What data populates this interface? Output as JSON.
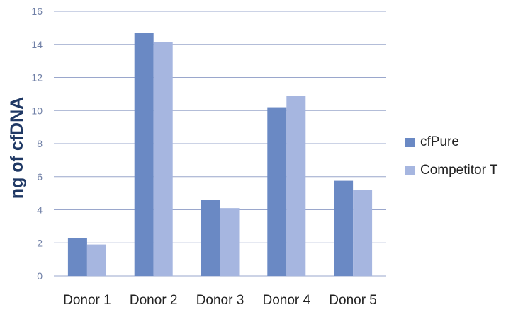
{
  "chart_data": {
    "type": "bar",
    "title": "",
    "xlabel": "",
    "ylabel": "ng of cfDNA",
    "categories": [
      "Donor 1",
      "Donor 2",
      "Donor 3",
      "Donor 4",
      "Donor 5"
    ],
    "series": [
      {
        "name": "cfPure",
        "color": "#6a89c4",
        "values": [
          2.3,
          14.7,
          4.6,
          10.2,
          5.75
        ]
      },
      {
        "name": "Competitor T",
        "color": "#a6b6e0",
        "values": [
          1.9,
          14.15,
          4.1,
          10.9,
          5.2
        ]
      }
    ],
    "ylim": [
      0,
      16
    ],
    "yticks": [
      "0",
      "2",
      "4",
      "6",
      "8",
      "10",
      "12",
      "14",
      "16"
    ],
    "grid": true,
    "legend_position": "right",
    "colors": {
      "grid": "#9aa7cc",
      "axis_text": "#6f7fa6",
      "ylabel": "#1f3864",
      "category_text": "#222222"
    }
  }
}
